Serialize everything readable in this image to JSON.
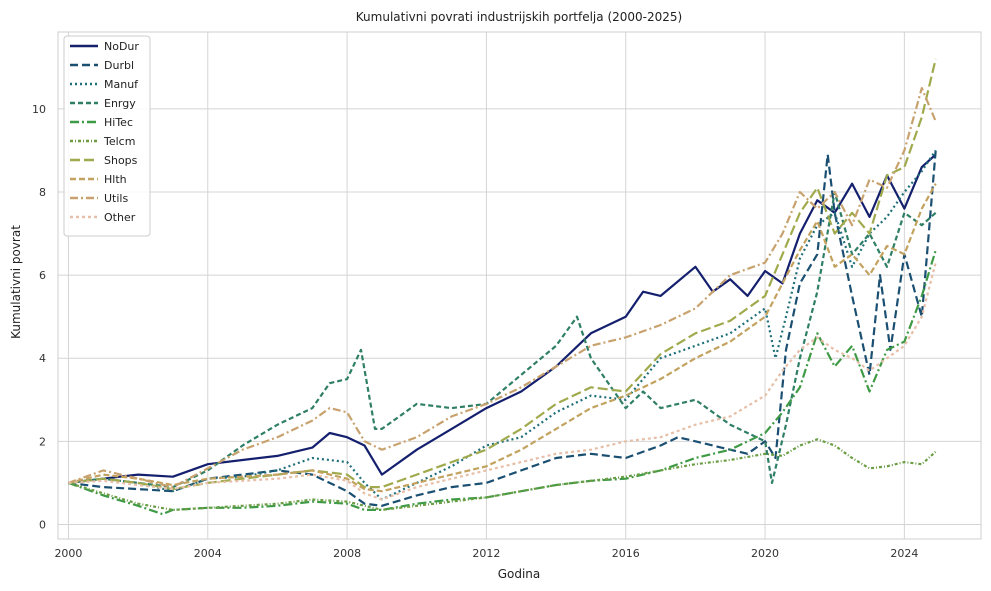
{
  "chart_data": {
    "type": "line",
    "title": "Kumulativni povrati industrijskih portfelja (2000-2025)",
    "xlabel": "Godina",
    "ylabel": "Kumulativni povrat",
    "xlim": [
      1999.7,
      2026.2
    ],
    "ylim": [
      -0.35,
      11.85
    ],
    "xticks": [
      2000,
      2004,
      2008,
      2012,
      2016,
      2020,
      2024
    ],
    "yticks": [
      0,
      2,
      4,
      6,
      8,
      10
    ],
    "grid": true,
    "legend_position": "top-left",
    "series": [
      {
        "name": "NoDur",
        "color": "#14206e",
        "dash": "solid",
        "x": [
          2000,
          2001,
          2002,
          2003,
          2004,
          2005,
          2006,
          2007,
          2007.5,
          2008,
          2008.5,
          2009,
          2010,
          2011,
          2012,
          2013,
          2014,
          2015,
          2016,
          2016.5,
          2017,
          2018,
          2018.5,
          2019,
          2019.5,
          2020,
          2020.5,
          2021,
          2021.5,
          2022,
          2022.5,
          2023,
          2023.5,
          2024,
          2024.5,
          2024.9
        ],
        "y": [
          1.0,
          1.1,
          1.2,
          1.15,
          1.45,
          1.55,
          1.65,
          1.85,
          2.2,
          2.1,
          1.9,
          1.2,
          1.8,
          2.3,
          2.8,
          3.2,
          3.8,
          4.6,
          5.0,
          5.6,
          5.5,
          6.2,
          5.6,
          5.9,
          5.5,
          6.1,
          5.8,
          7.0,
          7.8,
          7.5,
          8.2,
          7.4,
          8.4,
          7.6,
          8.6,
          8.9
        ]
      },
      {
        "name": "Durbl",
        "color": "#1b4f72",
        "dash": "8,4",
        "x": [
          2000,
          2001,
          2002,
          2003,
          2004,
          2005,
          2006,
          2007,
          2008,
          2008.5,
          2009,
          2010,
          2011,
          2012,
          2013,
          2014,
          2015,
          2016,
          2017,
          2017.5,
          2018,
          2019,
          2019.5,
          2020,
          2020.3,
          2020.6,
          2021,
          2021.5,
          2021.8,
          2022,
          2022.5,
          2023,
          2023.3,
          2023.6,
          2024,
          2024.5,
          2024.9
        ],
        "y": [
          1.0,
          0.9,
          0.85,
          0.8,
          1.1,
          1.2,
          1.3,
          1.2,
          0.8,
          0.5,
          0.45,
          0.7,
          0.9,
          1.0,
          1.3,
          1.6,
          1.7,
          1.6,
          1.9,
          2.1,
          2.0,
          1.8,
          1.7,
          2.0,
          1.6,
          4.2,
          5.8,
          6.5,
          8.9,
          7.5,
          5.5,
          3.6,
          6.0,
          4.2,
          6.5,
          5.0,
          9.0
        ]
      },
      {
        "name": "Manuf",
        "color": "#1f6f78",
        "dash": "2,3",
        "x": [
          2000,
          2001,
          2002,
          2003,
          2004,
          2005,
          2006,
          2007,
          2008,
          2008.5,
          2009,
          2010,
          2011,
          2012,
          2013,
          2014,
          2015,
          2016,
          2017,
          2018,
          2019,
          2020,
          2020.3,
          2020.6,
          2021,
          2021.5,
          2022,
          2022.5,
          2023,
          2023.5,
          2024,
          2024.5,
          2024.9
        ],
        "y": [
          1.0,
          1.1,
          1.0,
          0.8,
          1.1,
          1.15,
          1.3,
          1.6,
          1.5,
          1.0,
          0.6,
          1.0,
          1.4,
          1.9,
          2.1,
          2.7,
          3.1,
          3.0,
          4.0,
          4.3,
          4.6,
          5.2,
          4.0,
          5.0,
          6.4,
          7.2,
          7.5,
          6.2,
          7.0,
          7.4,
          8.0,
          8.5,
          9.0
        ]
      },
      {
        "name": "Enrgy",
        "color": "#2f7e66",
        "dash": "5,3",
        "x": [
          2000,
          2001,
          2002,
          2003,
          2004,
          2005,
          2006,
          2007,
          2007.5,
          2008,
          2008.4,
          2008.8,
          2009,
          2010,
          2011,
          2012,
          2013,
          2014,
          2014.6,
          2015,
          2016,
          2016.5,
          2017,
          2018,
          2019,
          2020,
          2020.2,
          2020.6,
          2021,
          2021.5,
          2022,
          2022.5,
          2023,
          2023.5,
          2024,
          2024.5,
          2024.9
        ],
        "y": [
          1.0,
          1.1,
          1.0,
          0.9,
          1.3,
          1.9,
          2.4,
          2.8,
          3.4,
          3.5,
          4.2,
          2.3,
          2.3,
          2.9,
          2.8,
          2.9,
          3.6,
          4.3,
          5.0,
          4.0,
          2.8,
          3.2,
          2.8,
          3.0,
          2.4,
          2.0,
          1.0,
          2.4,
          4.0,
          5.6,
          8.0,
          6.5,
          7.0,
          6.2,
          7.5,
          7.2,
          7.5
        ]
      },
      {
        "name": "HiTec",
        "color": "#3f9a45",
        "dash": "9,3,2,3",
        "x": [
          2000,
          2001,
          2002,
          2002.7,
          2003,
          2004,
          2005,
          2006,
          2007,
          2008,
          2008.5,
          2009,
          2010,
          2011,
          2012,
          2013,
          2014,
          2015,
          2016,
          2017,
          2018,
          2019,
          2020,
          2020.5,
          2021,
          2021.5,
          2022,
          2022.5,
          2023,
          2023.5,
          2024,
          2024.5,
          2024.9
        ],
        "y": [
          1.0,
          0.7,
          0.45,
          0.25,
          0.35,
          0.4,
          0.4,
          0.45,
          0.55,
          0.5,
          0.35,
          0.35,
          0.5,
          0.6,
          0.65,
          0.8,
          0.95,
          1.05,
          1.1,
          1.3,
          1.6,
          1.8,
          2.2,
          2.7,
          3.3,
          4.6,
          3.8,
          4.3,
          3.2,
          4.2,
          4.4,
          5.5,
          6.6
        ]
      },
      {
        "name": "Telcm",
        "color": "#6a9d44",
        "dash": "3,2,1,2",
        "x": [
          2000,
          2001,
          2002,
          2003,
          2004,
          2005,
          2006,
          2007,
          2008,
          2009,
          2010,
          2011,
          2012,
          2013,
          2014,
          2015,
          2016,
          2017,
          2018,
          2019,
          2020,
          2020.5,
          2021,
          2021.5,
          2022,
          2022.5,
          2023,
          2023.5,
          2024,
          2024.5,
          2024.9
        ],
        "y": [
          1.0,
          0.75,
          0.5,
          0.35,
          0.4,
          0.45,
          0.5,
          0.6,
          0.55,
          0.35,
          0.45,
          0.55,
          0.65,
          0.8,
          0.95,
          1.05,
          1.15,
          1.3,
          1.45,
          1.55,
          1.7,
          1.65,
          1.9,
          2.05,
          1.9,
          1.6,
          1.35,
          1.4,
          1.5,
          1.45,
          1.75
        ]
      },
      {
        "name": "Shops",
        "color": "#a0aa4c",
        "dash": "10,4",
        "x": [
          2000,
          2001,
          2002,
          2003,
          2004,
          2005,
          2006,
          2007,
          2008,
          2008.5,
          2009,
          2010,
          2011,
          2012,
          2013,
          2014,
          2015,
          2016,
          2017,
          2018,
          2019,
          2020,
          2020.5,
          2021,
          2021.5,
          2022,
          2022.5,
          2023,
          2023.5,
          2024,
          2024.5,
          2024.9
        ],
        "y": [
          1.0,
          1.1,
          1.0,
          0.85,
          1.0,
          1.1,
          1.2,
          1.3,
          1.2,
          0.9,
          0.9,
          1.2,
          1.5,
          1.8,
          2.3,
          2.9,
          3.3,
          3.2,
          4.1,
          4.6,
          4.9,
          5.5,
          6.5,
          7.5,
          8.1,
          7.0,
          7.5,
          7.0,
          8.4,
          8.6,
          9.8,
          11.2
        ]
      },
      {
        "name": "Hlth",
        "color": "#c2a25e",
        "dash": "6,3",
        "x": [
          2000,
          2001,
          2002,
          2003,
          2004,
          2005,
          2006,
          2007,
          2008,
          2008.5,
          2009,
          2010,
          2011,
          2012,
          2013,
          2014,
          2015,
          2016,
          2017,
          2018,
          2019,
          2020,
          2020.5,
          2021,
          2021.5,
          2022,
          2022.5,
          2023,
          2023.5,
          2024,
          2024.5,
          2024.9
        ],
        "y": [
          1.0,
          1.2,
          1.1,
          0.95,
          1.1,
          1.15,
          1.2,
          1.3,
          1.1,
          0.85,
          0.8,
          1.0,
          1.2,
          1.4,
          1.8,
          2.3,
          2.8,
          3.1,
          3.5,
          4.0,
          4.4,
          5.0,
          5.8,
          6.6,
          7.3,
          6.2,
          6.5,
          6.0,
          6.7,
          6.5,
          7.6,
          8.2
        ]
      },
      {
        "name": "Utils",
        "color": "#c8a26e",
        "dash": "8,3,2,3",
        "x": [
          2000,
          2001,
          2002,
          2003,
          2004,
          2005,
          2006,
          2007,
          2007.5,
          2008,
          2008.5,
          2009,
          2010,
          2011,
          2012,
          2013,
          2014,
          2015,
          2016,
          2017,
          2018,
          2019,
          2020,
          2020.5,
          2021,
          2021.5,
          2022,
          2022.5,
          2023,
          2023.5,
          2024,
          2024.5,
          2024.9
        ],
        "y": [
          1.0,
          1.3,
          1.1,
          0.9,
          1.35,
          1.8,
          2.1,
          2.5,
          2.8,
          2.7,
          2.0,
          1.8,
          2.1,
          2.6,
          2.9,
          3.3,
          3.8,
          4.3,
          4.5,
          4.8,
          5.2,
          6.0,
          6.3,
          7.0,
          8.0,
          7.6,
          8.0,
          7.2,
          8.3,
          8.1,
          9.0,
          10.5,
          9.7
        ]
      },
      {
        "name": "Other",
        "color": "#e6bfa8",
        "dash": "3,3",
        "x": [
          2000,
          2001,
          2002,
          2003,
          2004,
          2005,
          2006,
          2007,
          2008,
          2008.5,
          2009,
          2010,
          2011,
          2012,
          2013,
          2014,
          2015,
          2016,
          2017,
          2018,
          2019,
          2020,
          2020.5,
          2021,
          2021.5,
          2022,
          2022.5,
          2023,
          2023.5,
          2024,
          2024.5,
          2024.9
        ],
        "y": [
          1.0,
          1.05,
          0.95,
          0.85,
          1.0,
          1.05,
          1.1,
          1.2,
          1.05,
          0.75,
          0.6,
          0.9,
          1.1,
          1.3,
          1.5,
          1.7,
          1.8,
          2.0,
          2.1,
          2.4,
          2.6,
          3.1,
          3.7,
          4.2,
          4.5,
          4.2,
          4.0,
          3.7,
          4.0,
          4.3,
          5.0,
          6.3
        ]
      }
    ]
  }
}
